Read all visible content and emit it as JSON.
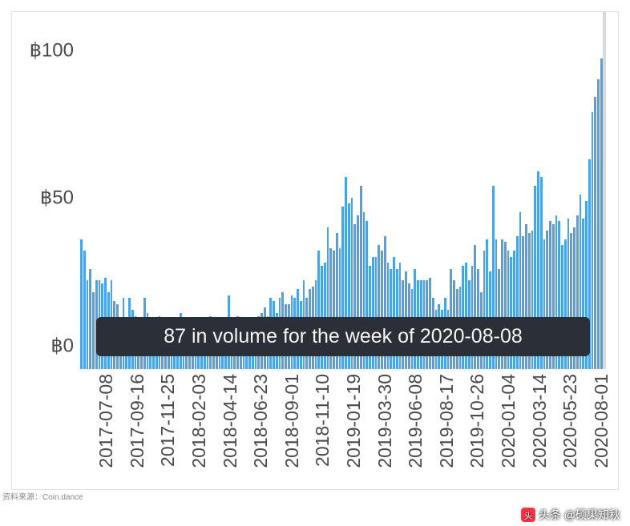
{
  "chart": {
    "type": "bar",
    "background_color": "#ffffff",
    "border_color": "#e0e0e0",
    "bar_color": "#4da3e0",
    "highlight_color": "#d9d9d9",
    "text_color": "#4a4a4a",
    "tooltip_bg": "#2b2f38",
    "tooltip_text_color": "#f5f5f5",
    "y_prefix": "฿",
    "ylim": [
      0,
      110
    ],
    "y_ticks": [
      0,
      50,
      100
    ],
    "series": [
      44,
      40,
      30,
      34,
      26,
      30,
      30,
      29,
      31,
      26,
      30,
      23,
      22,
      14,
      24,
      17,
      24,
      20,
      18,
      10,
      9,
      24,
      19,
      9,
      14,
      15,
      18,
      16,
      13,
      16,
      17,
      15,
      13,
      19,
      17,
      17,
      12,
      16,
      15,
      14,
      16,
      16,
      15,
      18,
      13,
      13,
      16,
      17,
      16,
      25,
      14,
      17,
      18,
      16,
      15,
      16,
      16,
      16,
      17,
      18,
      19,
      21,
      18,
      24,
      23,
      19,
      24,
      26,
      22,
      22,
      25,
      24,
      27,
      23,
      30,
      24,
      27,
      28,
      30,
      40,
      35,
      36,
      48,
      41,
      40,
      46,
      41,
      55,
      65,
      56,
      58,
      49,
      52,
      62,
      53,
      50,
      35,
      38,
      38,
      42,
      40,
      45,
      36,
      34,
      38,
      34,
      36,
      30,
      33,
      29,
      27,
      34,
      30,
      30,
      30,
      30,
      31,
      24,
      20,
      22,
      20,
      24,
      20,
      34,
      30,
      27,
      28,
      35,
      36,
      30,
      35,
      42,
      34,
      26,
      40,
      44,
      33,
      62,
      44,
      34,
      44,
      43,
      40,
      38,
      40,
      45,
      53,
      45,
      49,
      46,
      47,
      62,
      67,
      65,
      44,
      47,
      50,
      49,
      52,
      50,
      42,
      44,
      51,
      46,
      48,
      52,
      59,
      51,
      57,
      71,
      87,
      92,
      98,
      105,
      87
    ],
    "x_labels": [
      "2017-07-08",
      "2017-09-16",
      "2017-11-25",
      "2018-02-03",
      "2018-04-14",
      "2018-06-23",
      "2018-09-01",
      "2018-11-10",
      "2019-01-19",
      "2019-03-30",
      "2019-06-08",
      "2019-08-17",
      "2019-10-26",
      "2020-01-04",
      "2020-03-14",
      "2020-05-23",
      "2020-08-01"
    ],
    "tooltip": {
      "text": "87 in volume for the week of 2020-08-08",
      "bar_index": 174
    },
    "highlighted_bar_index": 174
  },
  "source": {
    "label": "资料来源：Coin.dance",
    "color": "#888888"
  },
  "watermark": {
    "text": "头条 @硕果知秋",
    "logo_text": "头"
  }
}
